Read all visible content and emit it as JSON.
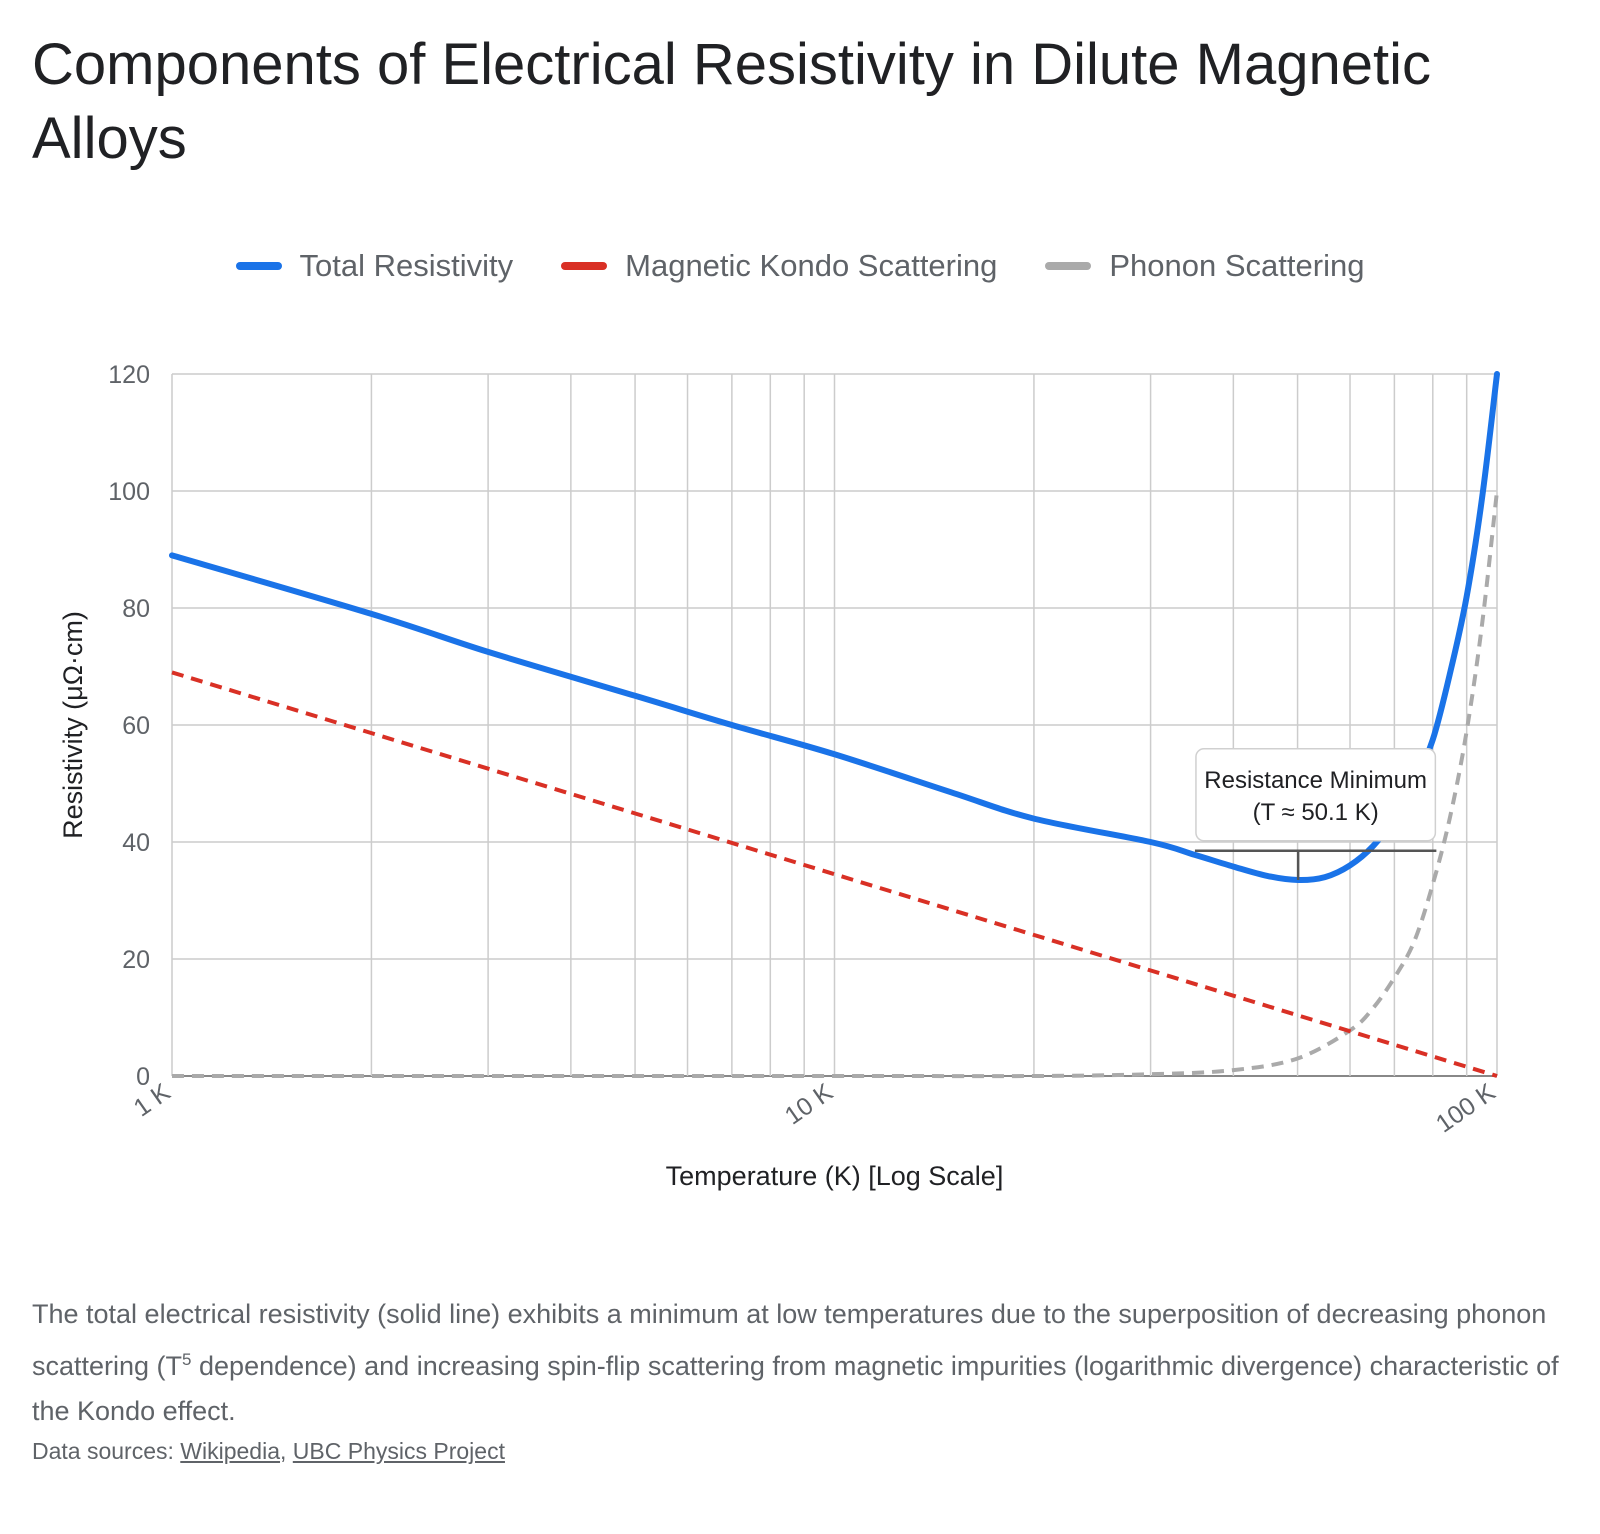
{
  "title": "Components of Electrical Resistivity in Dilute Magnetic Alloys",
  "legend": [
    {
      "label": "Total Resistivity",
      "color": "#1a73e8",
      "style": "solid"
    },
    {
      "label": "Magnetic Kondo Scattering",
      "color": "#d93025",
      "style": "dashed"
    },
    {
      "label": "Phonon Scattering",
      "color": "#aaaaaa",
      "style": "dashed"
    }
  ],
  "annotation": {
    "line1": "Resistance Minimum",
    "line2": "(T ≈ 50.1 K)",
    "x": 50.1,
    "y": 33.5,
    "y_bar": 38.5,
    "x_from": 35,
    "x_to": 81
  },
  "footer": {
    "note_before": "The total electrical resistivity (solid line) exhibits a minimum at low temperatures due to the superposition of decreasing phonon scattering (T",
    "note_sup": "5",
    "note_after": " dependence) and increasing spin-flip scattering from magnetic impurities (logarithmic divergence) characteristic of the Kondo effect.",
    "sources_label": "Data sources:",
    "sources": [
      "Wikipedia",
      "UBC Physics Project"
    ]
  },
  "chart_data": {
    "type": "line",
    "title": "Components of Electrical Resistivity in Dilute Magnetic Alloys",
    "xlabel": "Temperature (K) [Log Scale]",
    "ylabel": "Resistivity (μΩ·cm)",
    "x_scale": "log",
    "xlim": [
      1,
      100
    ],
    "ylim": [
      0,
      120
    ],
    "x_ticks": [
      1,
      10,
      100
    ],
    "x_tick_labels": [
      "1 K",
      "10 K",
      "100 K"
    ],
    "x_minor_gridlines": [
      2,
      3,
      4,
      5,
      6,
      7,
      8,
      9,
      20,
      30,
      40,
      50,
      60,
      70,
      80,
      90
    ],
    "y_ticks": [
      0,
      20,
      40,
      60,
      80,
      100,
      120
    ],
    "y_tick_labels": [
      "0",
      "20",
      "40",
      "60",
      "80",
      "100",
      "120"
    ],
    "grid": true,
    "legend_position": "top",
    "series": [
      {
        "name": "Total Resistivity",
        "color": "#1a73e8",
        "style": "solid",
        "x": [
          1,
          2,
          3,
          5,
          7,
          10,
          15,
          20,
          30,
          35,
          40,
          45,
          50.1,
          55,
          60,
          65,
          70,
          75,
          80,
          85,
          90,
          95,
          100
        ],
        "y": [
          89,
          79,
          72.5,
          65,
          60,
          55,
          48.5,
          44,
          40,
          37.8,
          35.8,
          34.2,
          33.5,
          34,
          36,
          39.3,
          44,
          50,
          57.5,
          69,
          82,
          99,
          120
        ]
      },
      {
        "name": "Magnetic Kondo Scattering",
        "color": "#d93025",
        "style": "dashed",
        "x": [
          1,
          10,
          100
        ],
        "y": [
          69,
          34.5,
          0
        ]
      },
      {
        "name": "Phonon Scattering",
        "color": "#aaaaaa",
        "style": "dashed",
        "x": [
          1,
          10,
          20,
          30,
          40,
          50,
          60,
          65,
          70,
          75,
          80,
          85,
          90,
          95,
          100
        ],
        "y": [
          0,
          0,
          0,
          0.3,
          1,
          3,
          7.8,
          11.6,
          16.8,
          23,
          32.8,
          44.4,
          59,
          77.4,
          100
        ]
      }
    ]
  }
}
